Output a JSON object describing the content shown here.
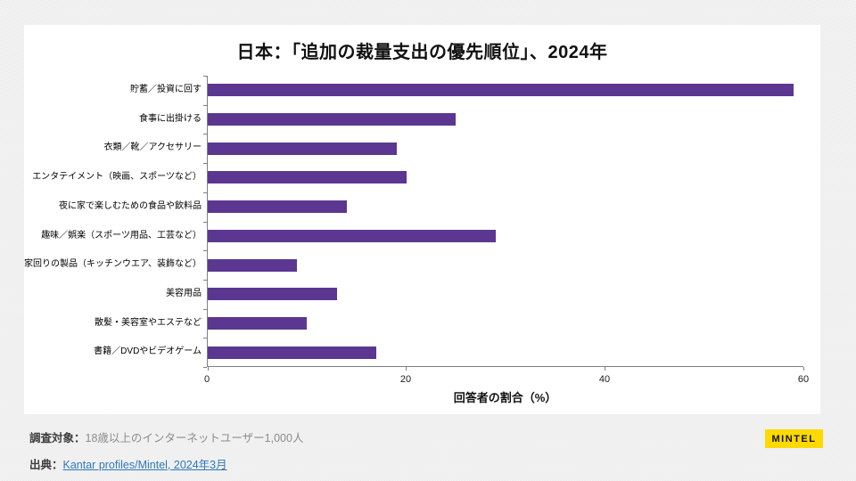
{
  "title": "日本：「追加の裁量支出の優先順位」、2024年",
  "chart_data": {
    "type": "bar",
    "orientation": "horizontal",
    "title": "日本：「追加の裁量支出の優先順位」、2024年",
    "categories": [
      "貯蓄／投資に回す",
      "食事に出掛ける",
      "衣類／靴／アクセサリー",
      "エンタテイメント（映画、スポーツなど）",
      "夜に家で楽しむための食品や飲料品",
      "趣味／娯楽（スポーツ用品、工芸など）",
      "家回りの製品（キッチンウエア、装飾など）",
      "美容用品",
      "散髪・美容室やエステなど",
      "書籍／DVDやビデオゲーム"
    ],
    "values": [
      59,
      25,
      19,
      20,
      14,
      29,
      9,
      13,
      10,
      17
    ],
    "xlabel": "回答者の割合（%）",
    "xlim": [
      0,
      60
    ],
    "xticks": [
      0,
      20,
      40,
      60
    ],
    "bar_color": "#5b3791",
    "axis_color": "#808080",
    "grid": false,
    "legend": false
  },
  "footer": {
    "survey_label": "調査対象：",
    "survey_text": "18歳以上のインターネットユーザー1,000人",
    "source_label": "出典：",
    "source_link_text": "Kantar profiles/Mintel, 2024年3月"
  },
  "logo": {
    "text": "MINTEL",
    "background": "#ffd900"
  }
}
